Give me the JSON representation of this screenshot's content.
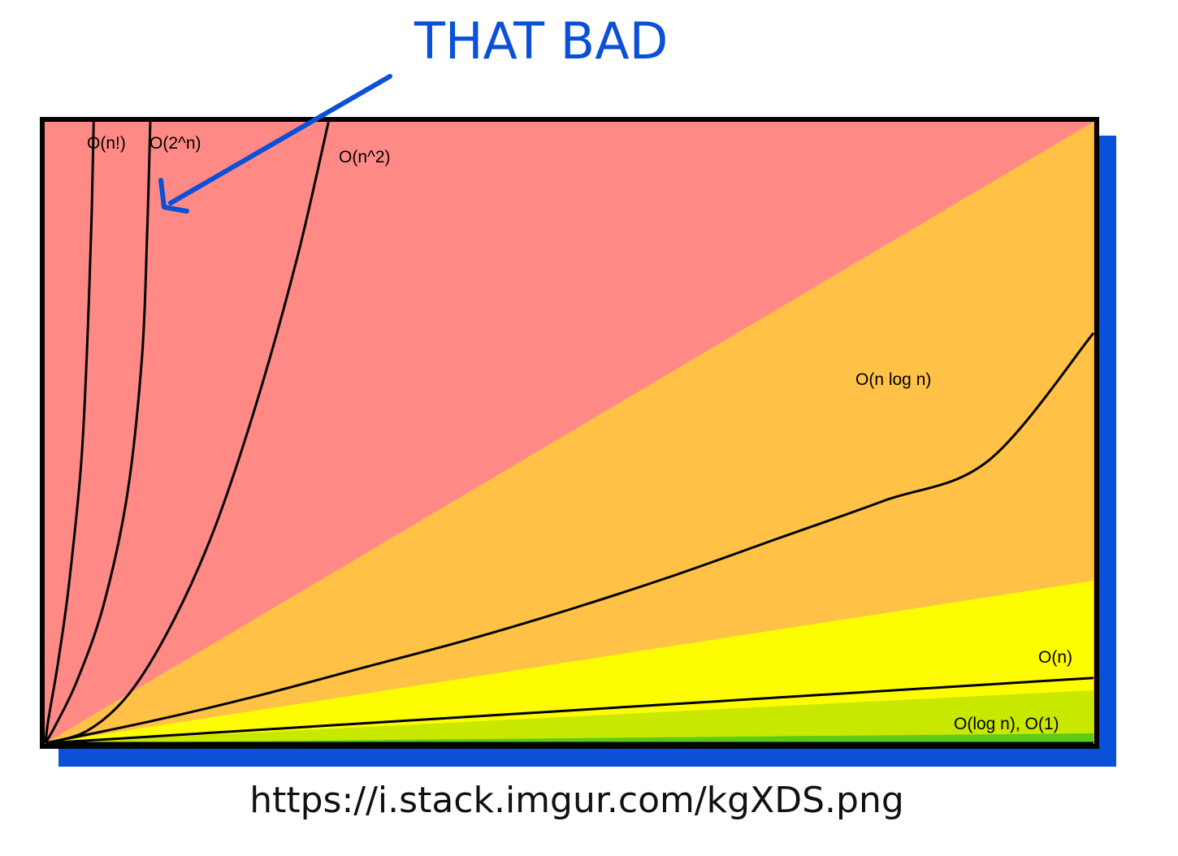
{
  "annotation": {
    "text": "THAT BAD",
    "color": "#0a50d8"
  },
  "caption": "https://i.stack.imgur.com/kgXDS.png",
  "chart_data": {
    "type": "line",
    "title": "",
    "xlabel": "",
    "ylabel": "",
    "grid": false,
    "legend": "none",
    "xlim": [
      0,
      1
    ],
    "ylim": [
      0,
      1
    ],
    "series": [
      {
        "name": "O(n!)",
        "label": "O(n!)",
        "x": [
          0,
          0.002,
          0.006,
          0.012,
          0.022,
          0.034,
          0.04,
          0.044,
          0.046
        ],
        "y": [
          0,
          0.03,
          0.07,
          0.13,
          0.25,
          0.45,
          0.65,
          0.85,
          1.0
        ]
      },
      {
        "name": "O(2^n)",
        "label": "O(2^n)",
        "x": [
          0,
          0.01,
          0.03,
          0.055,
          0.078,
          0.092,
          0.097,
          0.1
        ],
        "y": [
          0,
          0.03,
          0.1,
          0.22,
          0.4,
          0.62,
          0.82,
          1.0
        ]
      },
      {
        "name": "O(n^2)",
        "label": "O(n^2)",
        "x": [
          0,
          0.04,
          0.08,
          0.12,
          0.16,
          0.2,
          0.24,
          0.27
        ],
        "y": [
          0,
          0.02,
          0.08,
          0.19,
          0.34,
          0.54,
          0.78,
          1.0
        ]
      },
      {
        "name": "O(n log n)",
        "label": "O(n log n)",
        "x": [
          0,
          0.1,
          0.2,
          0.3,
          0.4,
          0.5,
          0.6,
          0.7,
          0.8,
          0.9,
          1.0
        ],
        "y": [
          0,
          0.035,
          0.075,
          0.12,
          0.165,
          0.215,
          0.27,
          0.33,
          0.39,
          0.455,
          0.66
        ]
      },
      {
        "name": "O(n)",
        "label": "O(n)",
        "x": [
          0,
          1
        ],
        "y": [
          0,
          0.105
        ]
      },
      {
        "name": "O(log n), O(1)",
        "label": "O(log n), O(1)",
        "x": [
          0,
          1
        ],
        "y": [
          0,
          0.0
        ]
      }
    ],
    "regions": [
      {
        "color": "#ff8a85"
      },
      {
        "color": "#ffc247"
      },
      {
        "color": "#fdfc00"
      },
      {
        "color": "#c8e800"
      },
      {
        "color": "#5acc17"
      }
    ],
    "frame_color": "#000000",
    "shadow_color": "#0a50d8"
  }
}
